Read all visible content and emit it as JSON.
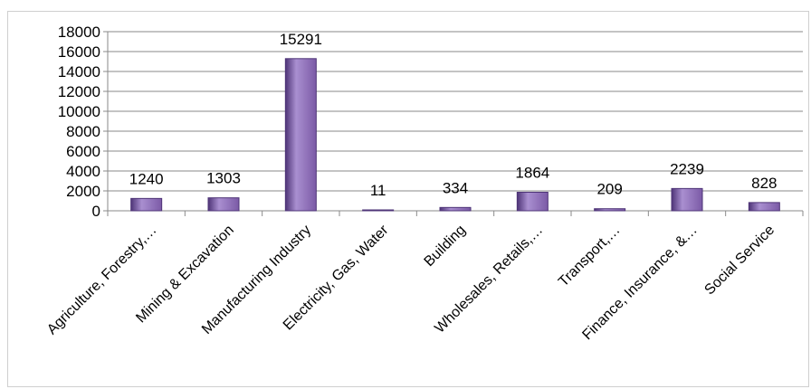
{
  "chart_data": {
    "type": "bar",
    "categories": [
      "Agriculture, Forestry,…",
      "Mining & Excavation",
      "Manufacturing Industry",
      "Electricity, Gas, Water",
      "Building",
      "Wholesales, Retails,…",
      "Transport,…",
      "Finance, Insurance, &…",
      "Social Service"
    ],
    "values": [
      1240,
      1303,
      15291,
      11,
      334,
      1864,
      209,
      2239,
      828
    ],
    "data_labels": [
      "1240",
      "1303",
      "15291",
      "11",
      "334",
      "1864",
      "209",
      "2239",
      "828"
    ],
    "ylim": [
      0,
      18000
    ],
    "yticks": [
      0,
      2000,
      4000,
      6000,
      8000,
      10000,
      12000,
      14000,
      16000,
      18000
    ],
    "ytick_labels": [
      "0",
      "2000",
      "4000",
      "6000",
      "8000",
      "10000",
      "12000",
      "14000",
      "16000",
      "18000"
    ],
    "grid": true,
    "legend": "none",
    "bar_color": "#7b5aa6",
    "bar_color_dark": "#4e3477",
    "bar_color_light": "#a98fd0"
  }
}
